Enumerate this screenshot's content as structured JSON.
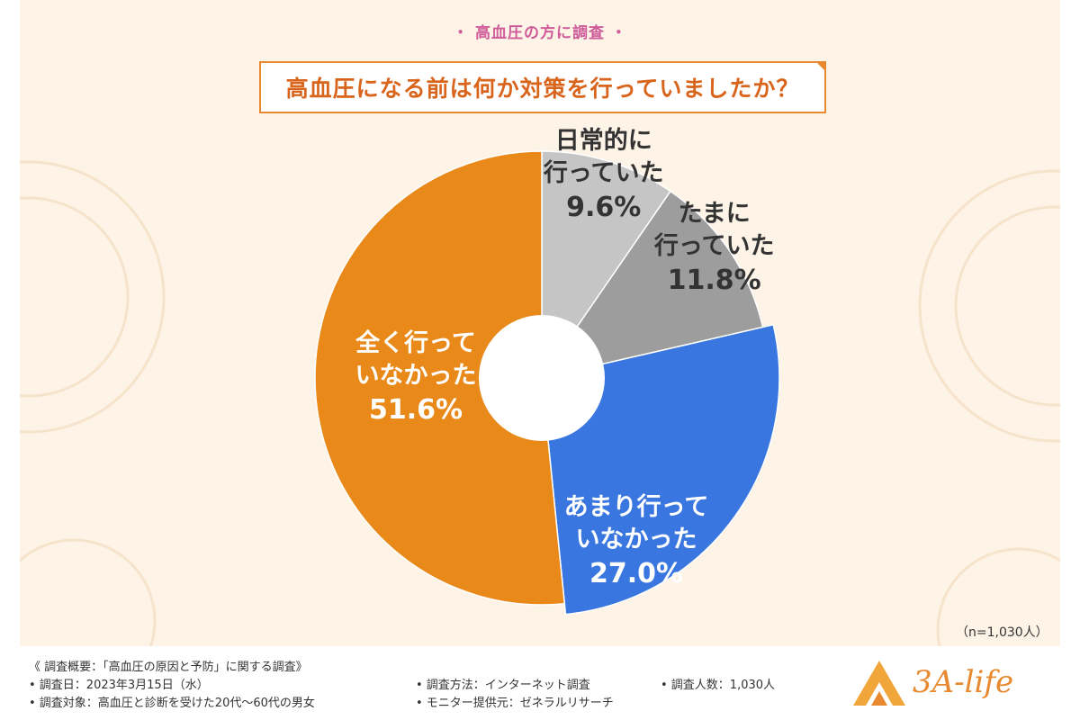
{
  "header": {
    "label": "・ 高血圧の方に調査 ・"
  },
  "chart_data": {
    "type": "pie",
    "title": "高血圧になる前は何か対策を行っていましたか？",
    "sample_note": "（n=1,030人）",
    "slices": [
      {
        "lines": [
          "日常的に",
          "行っていた"
        ],
        "value": 9.6,
        "pct_label": "9.6%",
        "color": "#c5c5c5",
        "label_color": "#333333"
      },
      {
        "lines": [
          "たまに",
          "行っていた"
        ],
        "value": 11.8,
        "pct_label": "11.8%",
        "color": "#9d9d9d",
        "label_color": "#333333"
      },
      {
        "lines": [
          "あまり行って",
          "いなかった"
        ],
        "value": 27.0,
        "pct_label": "27.0%",
        "color": "#3a76e0",
        "label_color": "#ffffff"
      },
      {
        "lines": [
          "全く行って",
          "いなかった"
        ],
        "value": 51.6,
        "pct_label": "51.6%",
        "color": "#e8891a",
        "label_color": "#ffffff"
      }
    ]
  },
  "footer": {
    "overview": "《 調査概要：「高血圧の原因と予防」に関する調査》",
    "date": "• 調査日：2023年3月15日（水）",
    "target": "• 調査対象：高血圧と診断を受けた20代～60代の男女",
    "method": "• 調査方法：インターネット調査",
    "monitor": "• モニター提供元：ゼネラルリサーチ",
    "count": "• 調査人数：1,030人",
    "logo": "3A-life"
  },
  "colors": {
    "background": "#fdf3e6",
    "accent": "#e8892f",
    "header_pink": "#cf5c9a"
  }
}
